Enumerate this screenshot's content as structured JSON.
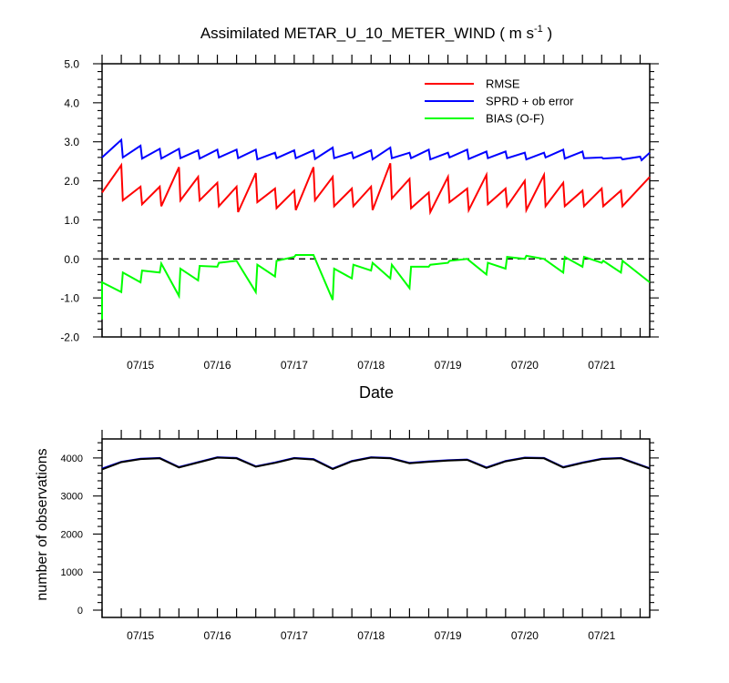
{
  "chart_data": [
    {
      "type": "line",
      "title": "Assimilated METAR_U_10_METER_WIND ( m s",
      "title_superscript": "-1",
      "title_close": " )",
      "xlabel": "Date",
      "ylabel": "",
      "ylim": [
        -2.0,
        5.0
      ],
      "yticks": [
        "-2.0",
        "-1.0",
        "0.0",
        "1.0",
        "2.0",
        "3.0",
        "4.0",
        "5.0"
      ],
      "xticks": [
        {
          "label": "07/15",
          "x": 0.5
        },
        {
          "label": "07/16",
          "x": 1.5
        },
        {
          "label": "07/17",
          "x": 2.5
        },
        {
          "label": "07/18",
          "x": 3.5
        },
        {
          "label": "07/19",
          "x": 4.5
        },
        {
          "label": "07/20",
          "x": 5.5
        },
        {
          "label": "07/21",
          "x": 6.5
        }
      ],
      "xlim": [
        0,
        7.125
      ],
      "x_step": 0.25,
      "zero_line": true,
      "legend": "top-right",
      "series": [
        {
          "name": "RMSE",
          "color": "#ff0000",
          "values": [
            1.7,
            2.4,
            1.5,
            1.85,
            1.4,
            1.85,
            1.35,
            2.35,
            1.5,
            2.1,
            1.5,
            1.95,
            1.35,
            1.85,
            1.2,
            2.2,
            1.45,
            1.8,
            1.3,
            1.75,
            1.25,
            2.35,
            1.5,
            2.1,
            1.35,
            1.8,
            1.35,
            1.85,
            1.25,
            2.45,
            1.55,
            2.05,
            1.3,
            1.7,
            1.2,
            2.1,
            1.45,
            1.8,
            1.25,
            2.15,
            1.4,
            1.8,
            1.35,
            2.0,
            1.25,
            2.15,
            1.35,
            1.95,
            1.35,
            1.75,
            1.35,
            1.8,
            1.35,
            1.75,
            1.35,
            2.1
          ],
          "drops": [
            [
              1.4,
              1.5,
              1.45,
              1.4,
              1.35,
              1.45,
              1.3,
              1.25
            ]
          ]
        },
        {
          "name": "SPRD + ob error",
          "color": "#0000ff",
          "values": [
            2.6,
            3.05,
            2.6,
            2.9,
            2.6,
            2.8,
            2.6,
            2.8
          ],
          "drops": []
        },
        {
          "name": "BIAS (O-F)",
          "color": "#00ff00",
          "values": [
            -1.55,
            -0.6,
            -0.85,
            -0.3,
            -0.4,
            -0.1,
            -0.95,
            -0.25,
            -0.55,
            -0.2,
            -0.2,
            -0.05,
            -0.85,
            -0.15,
            -0.45,
            0.0,
            0.1,
            -1.05,
            -0.25,
            -0.5,
            -0.15,
            -0.5,
            -0.15,
            -0.3,
            -0.75,
            -0.2,
            -0.4,
            -0.15
          ],
          "drops": []
        }
      ],
      "spread_points": [
        [
          0,
          2.6
        ],
        [
          0.25,
          3.05
        ],
        [
          0.27,
          2.6
        ],
        [
          0.5,
          2.9
        ],
        [
          0.52,
          2.57
        ],
        [
          0.75,
          2.82
        ],
        [
          0.77,
          2.57
        ],
        [
          1.0,
          2.82
        ],
        [
          1.02,
          2.58
        ],
        [
          1.25,
          2.78
        ],
        [
          1.27,
          2.57
        ],
        [
          1.5,
          2.8
        ],
        [
          1.52,
          2.6
        ],
        [
          1.75,
          2.8
        ],
        [
          1.77,
          2.58
        ],
        [
          2.0,
          2.8
        ],
        [
          2.02,
          2.55
        ],
        [
          2.25,
          2.72
        ],
        [
          2.27,
          2.58
        ],
        [
          2.5,
          2.78
        ],
        [
          2.52,
          2.58
        ],
        [
          2.75,
          2.78
        ],
        [
          2.77,
          2.56
        ],
        [
          3.0,
          2.85
        ],
        [
          3.02,
          2.58
        ],
        [
          3.25,
          2.73
        ],
        [
          3.27,
          2.58
        ],
        [
          3.5,
          2.78
        ],
        [
          3.52,
          2.55
        ],
        [
          3.75,
          2.85
        ],
        [
          3.77,
          2.58
        ],
        [
          4.0,
          2.72
        ],
        [
          4.02,
          2.58
        ],
        [
          4.25,
          2.8
        ],
        [
          4.27,
          2.55
        ],
        [
          4.5,
          2.72
        ],
        [
          4.52,
          2.6
        ],
        [
          4.75,
          2.8
        ],
        [
          4.77,
          2.56
        ],
        [
          5.0,
          2.75
        ],
        [
          5.02,
          2.58
        ],
        [
          5.25,
          2.75
        ],
        [
          5.27,
          2.58
        ],
        [
          5.5,
          2.72
        ],
        [
          5.52,
          2.55
        ],
        [
          5.75,
          2.72
        ],
        [
          5.77,
          2.6
        ],
        [
          6.0,
          2.8
        ],
        [
          6.02,
          2.57
        ],
        [
          6.25,
          2.75
        ],
        [
          6.27,
          2.58
        ],
        [
          6.5,
          2.6
        ],
        [
          6.52,
          2.57
        ],
        [
          6.75,
          2.6
        ],
        [
          6.77,
          2.55
        ],
        [
          7.0,
          2.62
        ],
        [
          7.02,
          2.53
        ],
        [
          7.125,
          2.72
        ]
      ],
      "rmse_points": [
        [
          0,
          1.7
        ],
        [
          0.25,
          2.4
        ],
        [
          0.27,
          1.5
        ],
        [
          0.5,
          1.85
        ],
        [
          0.52,
          1.4
        ],
        [
          0.75,
          1.85
        ],
        [
          0.77,
          1.35
        ],
        [
          1.0,
          2.35
        ],
        [
          1.02,
          1.5
        ],
        [
          1.25,
          2.1
        ],
        [
          1.27,
          1.5
        ],
        [
          1.5,
          1.95
        ],
        [
          1.52,
          1.35
        ],
        [
          1.75,
          1.85
        ],
        [
          1.77,
          1.2
        ],
        [
          2.0,
          2.2
        ],
        [
          2.02,
          1.45
        ],
        [
          2.25,
          1.8
        ],
        [
          2.27,
          1.3
        ],
        [
          2.5,
          1.75
        ],
        [
          2.52,
          1.25
        ],
        [
          2.75,
          2.35
        ],
        [
          2.77,
          1.5
        ],
        [
          3.0,
          2.1
        ],
        [
          3.02,
          1.35
        ],
        [
          3.25,
          1.8
        ],
        [
          3.27,
          1.35
        ],
        [
          3.5,
          1.85
        ],
        [
          3.52,
          1.25
        ],
        [
          3.75,
          2.45
        ],
        [
          3.77,
          1.55
        ],
        [
          4.0,
          2.05
        ],
        [
          4.02,
          1.3
        ],
        [
          4.25,
          1.7
        ],
        [
          4.27,
          1.2
        ],
        [
          4.5,
          2.1
        ],
        [
          4.52,
          1.45
        ],
        [
          4.75,
          1.8
        ],
        [
          4.77,
          1.25
        ],
        [
          5.0,
          2.15
        ],
        [
          5.02,
          1.4
        ],
        [
          5.25,
          1.8
        ],
        [
          5.27,
          1.35
        ],
        [
          5.5,
          2.0
        ],
        [
          5.52,
          1.25
        ],
        [
          5.75,
          2.15
        ],
        [
          5.77,
          1.35
        ],
        [
          6.0,
          1.95
        ],
        [
          6.02,
          1.35
        ],
        [
          6.25,
          1.75
        ],
        [
          6.27,
          1.35
        ],
        [
          6.5,
          1.8
        ],
        [
          6.52,
          1.35
        ],
        [
          6.75,
          1.75
        ],
        [
          6.77,
          1.35
        ],
        [
          7.125,
          2.1
        ]
      ],
      "bias_points": [
        [
          0,
          -1.55
        ],
        [
          0.0,
          -0.6
        ],
        [
          0.25,
          -0.85
        ],
        [
          0.27,
          -0.35
        ],
        [
          0.5,
          -0.6
        ],
        [
          0.52,
          -0.3
        ],
        [
          0.75,
          -0.35
        ],
        [
          0.77,
          -0.12
        ],
        [
          1.0,
          -0.95
        ],
        [
          1.02,
          -0.25
        ],
        [
          1.25,
          -0.55
        ],
        [
          1.27,
          -0.18
        ],
        [
          1.5,
          -0.2
        ],
        [
          1.52,
          -0.1
        ],
        [
          1.75,
          -0.05
        ],
        [
          2.0,
          -0.85
        ],
        [
          2.02,
          -0.15
        ],
        [
          2.25,
          -0.45
        ],
        [
          2.27,
          -0.05
        ],
        [
          2.5,
          0.05
        ],
        [
          2.52,
          0.1
        ],
        [
          2.75,
          0.1
        ],
        [
          3.0,
          -1.05
        ],
        [
          3.02,
          -0.25
        ],
        [
          3.25,
          -0.5
        ],
        [
          3.27,
          -0.15
        ],
        [
          3.5,
          -0.3
        ],
        [
          3.52,
          -0.1
        ],
        [
          3.75,
          -0.5
        ],
        [
          3.77,
          -0.15
        ],
        [
          4.0,
          -0.75
        ],
        [
          4.02,
          -0.2
        ],
        [
          4.25,
          -0.2
        ],
        [
          4.27,
          -0.15
        ],
        [
          4.5,
          -0.1
        ],
        [
          4.52,
          -0.05
        ],
        [
          4.75,
          0.0
        ],
        [
          5.0,
          -0.4
        ],
        [
          5.02,
          -0.1
        ],
        [
          5.25,
          -0.25
        ],
        [
          5.27,
          0.05
        ],
        [
          5.5,
          0.0
        ],
        [
          5.52,
          0.08
        ],
        [
          5.75,
          0.0
        ],
        [
          6.0,
          -0.35
        ],
        [
          6.02,
          0.05
        ],
        [
          6.25,
          -0.2
        ],
        [
          6.27,
          0.05
        ],
        [
          6.5,
          -0.1
        ],
        [
          6.52,
          -0.05
        ],
        [
          6.75,
          -0.35
        ],
        [
          6.77,
          -0.05
        ],
        [
          7.125,
          -0.6
        ]
      ]
    },
    {
      "type": "line",
      "title": "",
      "xlabel": "",
      "ylabel": "number of observations",
      "ylim": [
        0,
        4500
      ],
      "yticks": [
        "0",
        "1000",
        "2000",
        "3000",
        "4000"
      ],
      "ytick_values": [
        0,
        1000,
        2000,
        3000,
        4000
      ],
      "xticks": [
        {
          "label": "07/15",
          "x": 0.5
        },
        {
          "label": "07/16",
          "x": 1.5
        },
        {
          "label": "07/17",
          "x": 2.5
        },
        {
          "label": "07/18",
          "x": 3.5
        },
        {
          "label": "07/19",
          "x": 4.5
        },
        {
          "label": "07/20",
          "x": 5.5
        },
        {
          "label": "07/21",
          "x": 6.5
        }
      ],
      "xlim": [
        0,
        7.125
      ],
      "series": [
        {
          "color": "#0000ff",
          "points": [
            [
              0,
              3720
            ],
            [
              0.25,
              3900
            ],
            [
              0.5,
              3980
            ],
            [
              0.75,
              4000
            ],
            [
              1.0,
              3760
            ],
            [
              1.25,
              3890
            ],
            [
              1.5,
              4020
            ],
            [
              1.75,
              4000
            ],
            [
              2.0,
              3780
            ],
            [
              2.25,
              3880
            ],
            [
              2.5,
              4000
            ],
            [
              2.75,
              3970
            ],
            [
              3.0,
              3720
            ],
            [
              3.25,
              3920
            ],
            [
              3.5,
              4020
            ],
            [
              3.75,
              4000
            ],
            [
              4.0,
              3870
            ],
            [
              4.25,
              3910
            ],
            [
              4.5,
              3940
            ],
            [
              4.75,
              3960
            ],
            [
              5.0,
              3750
            ],
            [
              5.25,
              3920
            ],
            [
              5.5,
              4010
            ],
            [
              5.75,
              4000
            ],
            [
              6.0,
              3760
            ],
            [
              6.25,
              3880
            ],
            [
              6.5,
              3980
            ],
            [
              6.75,
              4000
            ],
            [
              7.125,
              3730
            ]
          ]
        },
        {
          "color": "#000000",
          "points": [
            [
              0,
              3700
            ],
            [
              0.25,
              3890
            ],
            [
              0.5,
              3970
            ],
            [
              0.75,
              3990
            ],
            [
              1.0,
              3750
            ],
            [
              1.25,
              3880
            ],
            [
              1.5,
              4010
            ],
            [
              1.75,
              3990
            ],
            [
              2.0,
              3770
            ],
            [
              2.25,
              3870
            ],
            [
              2.5,
              3990
            ],
            [
              2.75,
              3960
            ],
            [
              3.0,
              3710
            ],
            [
              3.25,
              3910
            ],
            [
              3.5,
              4010
            ],
            [
              3.75,
              3990
            ],
            [
              4.0,
              3860
            ],
            [
              4.25,
              3900
            ],
            [
              4.5,
              3930
            ],
            [
              4.75,
              3950
            ],
            [
              5.0,
              3740
            ],
            [
              5.25,
              3910
            ],
            [
              5.5,
              4000
            ],
            [
              5.75,
              3990
            ],
            [
              6.0,
              3750
            ],
            [
              6.25,
              3870
            ],
            [
              6.5,
              3970
            ],
            [
              6.75,
              3990
            ],
            [
              7.125,
              3720
            ]
          ]
        }
      ]
    }
  ],
  "legend_items": [
    {
      "label": "RMSE",
      "color": "#ff0000"
    },
    {
      "label": "SPRD + ob error",
      "color": "#0000ff"
    },
    {
      "label": "BIAS (O-F)",
      "color": "#00ff00"
    }
  ]
}
